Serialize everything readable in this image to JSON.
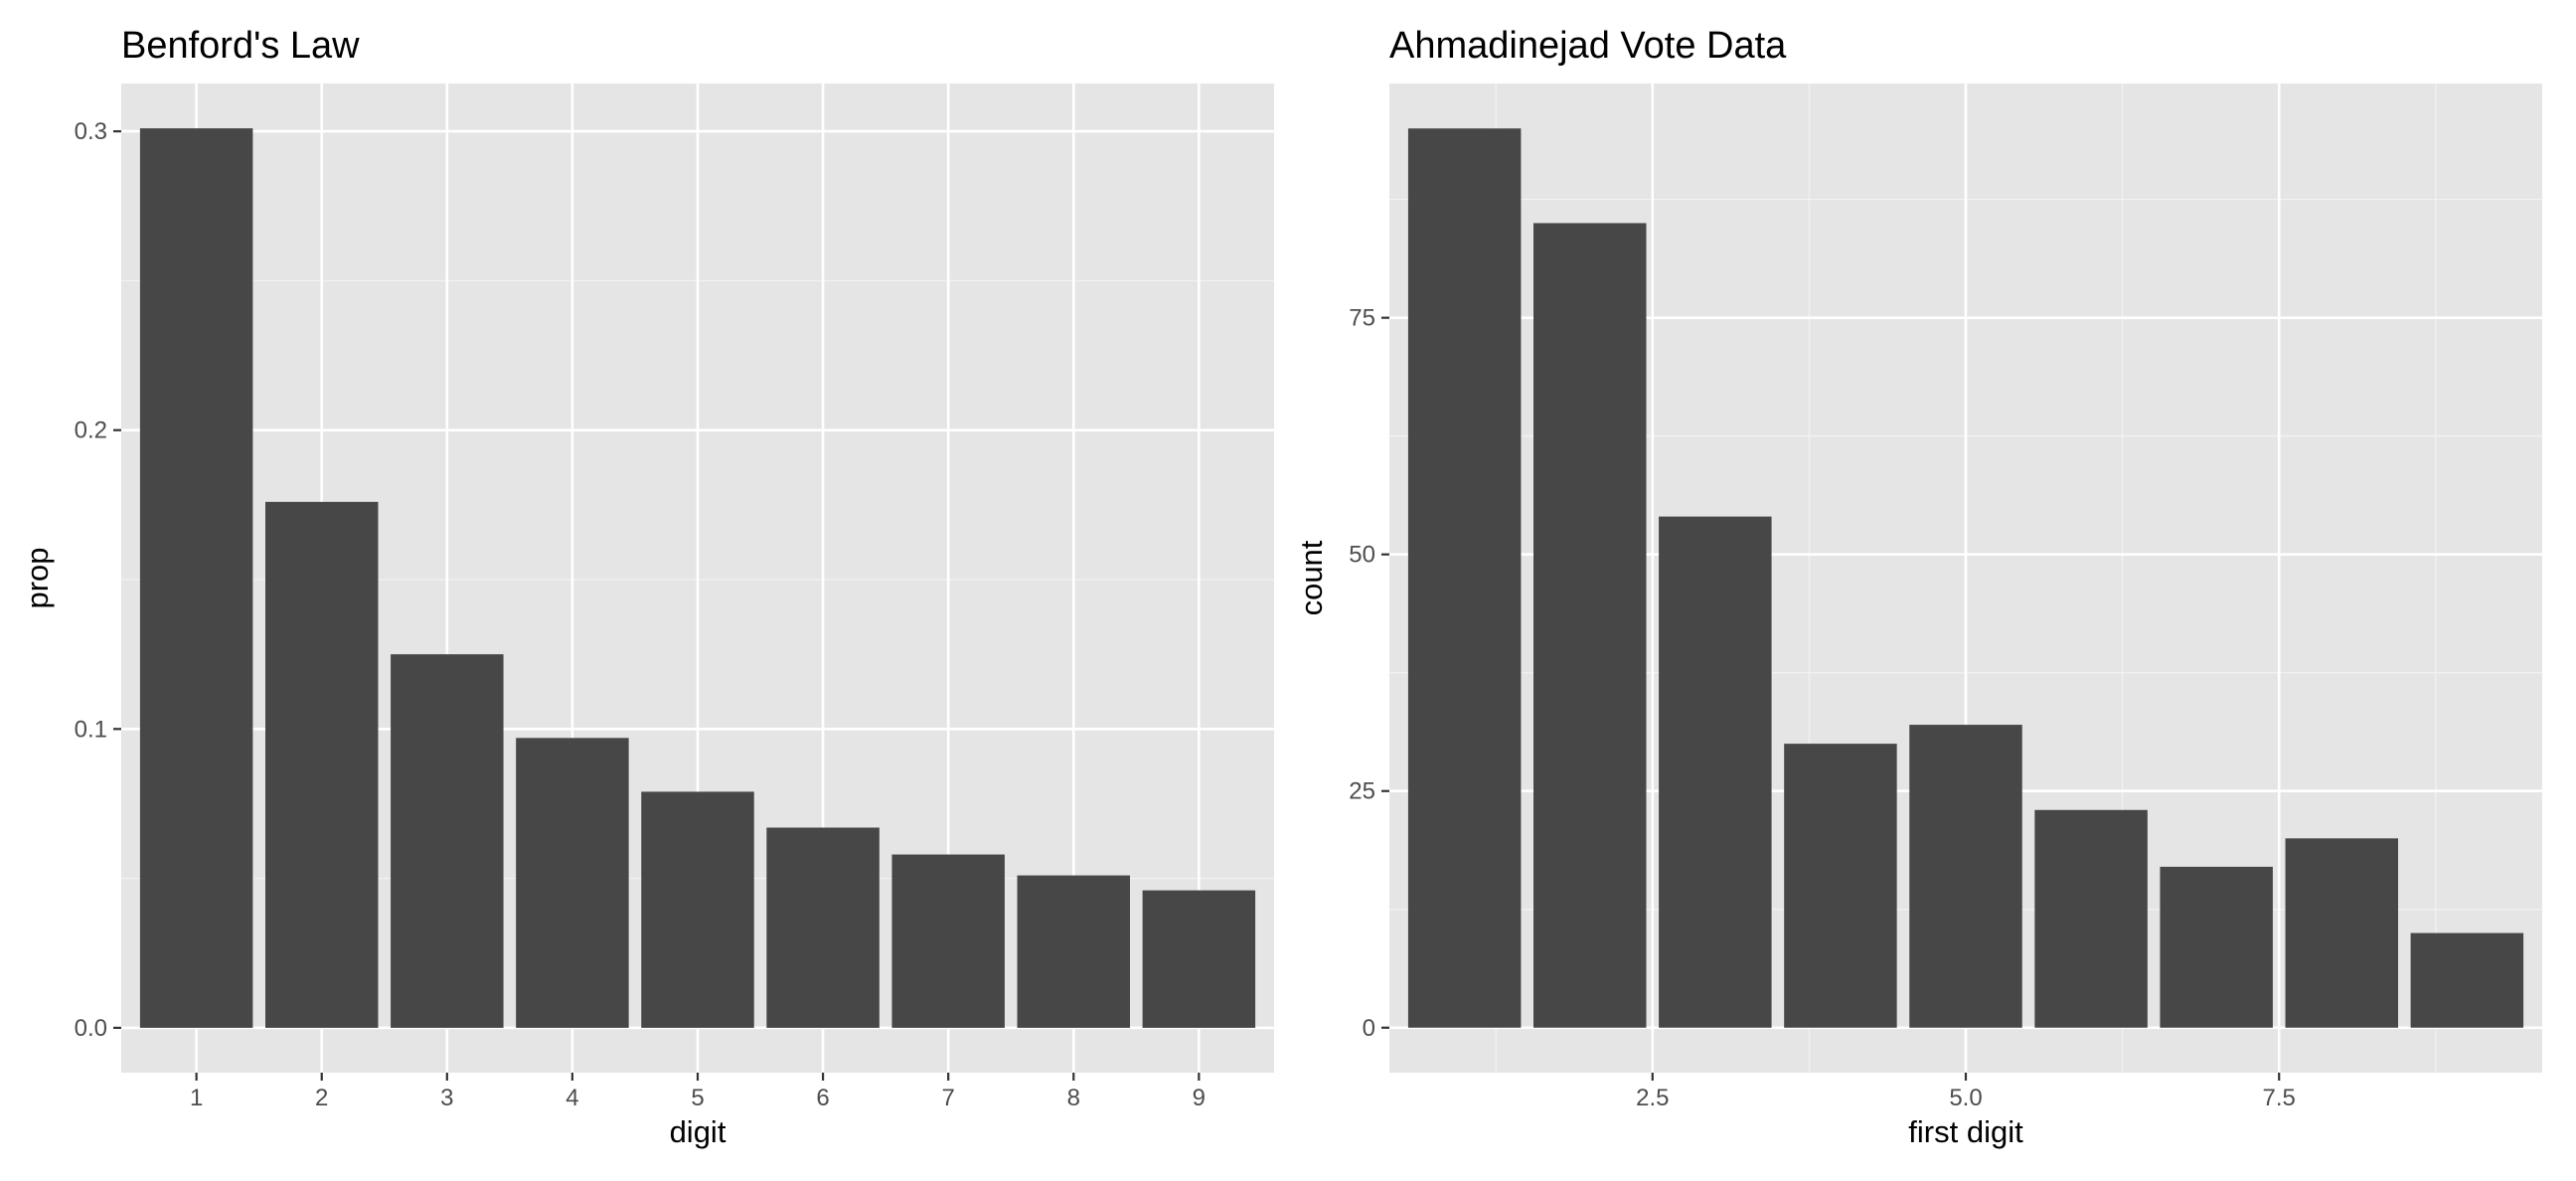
{
  "chart_data": [
    {
      "type": "bar",
      "title": "Benford's Law",
      "xlabel": "digit",
      "ylabel": "prop",
      "categories": [
        "1",
        "2",
        "3",
        "4",
        "5",
        "6",
        "7",
        "8",
        "9"
      ],
      "values": [
        0.301,
        0.176,
        0.125,
        0.097,
        0.079,
        0.067,
        0.058,
        0.051,
        0.046
      ],
      "ylim": [
        -0.015,
        0.316
      ],
      "yticks": [
        0.0,
        0.1,
        0.2,
        0.3
      ],
      "ytick_labels": [
        "0.0",
        "0.1",
        "0.2",
        "0.3"
      ],
      "grid": true,
      "bar_color": "#474747",
      "panel_color": "#e5e5e5"
    },
    {
      "type": "bar",
      "title": "Ahmadinejad Vote Data",
      "xlabel": "first digit",
      "ylabel": "count",
      "x": [
        1,
        2,
        3,
        4,
        5,
        6,
        7,
        8,
        9
      ],
      "values": [
        95,
        85,
        54,
        30,
        32,
        23,
        17,
        20,
        10
      ],
      "xlim": [
        0.4,
        9.6
      ],
      "ylim": [
        -4.75,
        99.75
      ],
      "xticks": [
        2.5,
        5.0,
        7.5
      ],
      "xtick_labels": [
        "2.5",
        "5.0",
        "7.5"
      ],
      "yticks": [
        0,
        25,
        50,
        75
      ],
      "ytick_labels": [
        "0",
        "25",
        "50",
        "75"
      ],
      "grid": true,
      "bar_color": "#474747",
      "panel_color": "#e5e5e5"
    }
  ]
}
